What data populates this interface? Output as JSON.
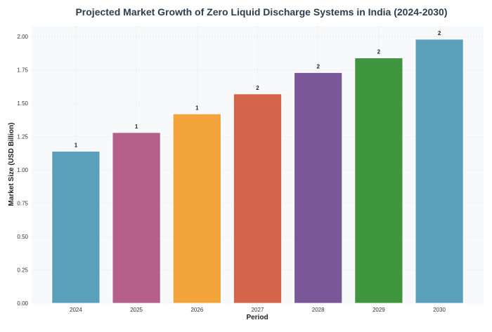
{
  "chart_data": {
    "type": "bar",
    "title": "Projected Market Growth of Zero Liquid Discharge Systems in India (2024-2030)",
    "xlabel": "Period",
    "ylabel": "Market Size (USD Billion)",
    "categories": [
      "2024",
      "2025",
      "2026",
      "2027",
      "2028",
      "2029",
      "2030"
    ],
    "values": [
      1.14,
      1.28,
      1.42,
      1.57,
      1.73,
      1.84,
      1.98
    ],
    "data_labels": [
      "1",
      "1",
      "1",
      "2",
      "2",
      "2",
      "2"
    ],
    "colors": [
      "#5aa0bb",
      "#b5608a",
      "#f2a43a",
      "#d4654a",
      "#7a5799",
      "#3f963f",
      "#5aa0bb"
    ],
    "ylim": [
      0,
      2.08
    ],
    "yticks": [
      0,
      0.25,
      0.5,
      0.75,
      1.0,
      1.25,
      1.5,
      1.75,
      2.0
    ],
    "ytick_labels": [
      "0.00",
      "0.25",
      "0.50",
      "0.75",
      "1.00",
      "1.25",
      "1.50",
      "1.75",
      "2.00"
    ],
    "grid": true,
    "background": "#f8f9fb"
  }
}
